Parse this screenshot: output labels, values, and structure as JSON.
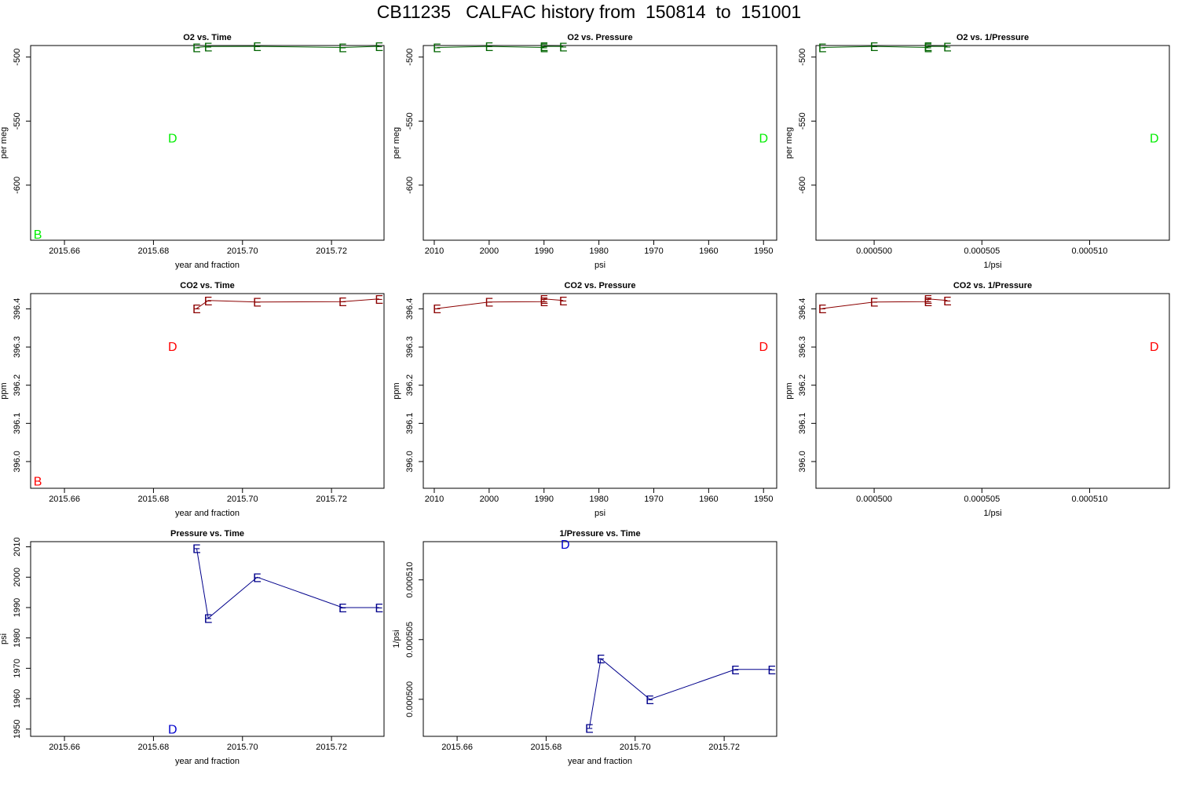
{
  "page": {
    "title": "CB11235   CALFAC history from  150814  to  151001"
  },
  "colors": {
    "o2_line": "#006400",
    "o2_last_point": "#00ee00",
    "co2_line": "#8b0000",
    "co2_last_point": "#ff0000",
    "pressure_line": "#00008b",
    "pressure_last_point": "#0000cd"
  },
  "chart_data": [
    {
      "type": "line",
      "title": "O2 vs. Time",
      "xlabel": "year and fraction",
      "ylabel": "per meg",
      "xlim": [
        2015.6524,
        2015.7318
      ],
      "ylim": [
        -643,
        -491
      ],
      "xticks": [
        2015.66,
        2015.68,
        2015.7,
        2015.72
      ],
      "xtick_labels": [
        "2015.66",
        "2015.68",
        "2015.70",
        "2015.72"
      ],
      "yticks": [
        -500,
        -550,
        -600
      ],
      "ytick_labels": [
        "-500",
        "-550",
        "-600"
      ],
      "series": [
        {
          "points": [
            [
              2015.6897,
              -492.5,
              "E"
            ],
            [
              2015.6923,
              -491.8,
              "E"
            ],
            [
              2015.7033,
              -491.7,
              "E"
            ],
            [
              2015.7225,
              -492.5,
              "E"
            ],
            [
              2015.7307,
              -491.6,
              "E"
            ]
          ],
          "line": true,
          "color": "#006400"
        },
        {
          "points": [
            [
              2015.654,
              -638,
              "B"
            ],
            [
              2015.6843,
              -563,
              "D"
            ]
          ],
          "line": false,
          "color": "#00ee00"
        }
      ]
    },
    {
      "type": "line",
      "title": "O2 vs. Pressure",
      "xlabel": "psi",
      "ylabel": "per meg",
      "xlim": [
        2012,
        1947.6
      ],
      "ylim": [
        -643,
        -491
      ],
      "xticks": [
        2010,
        2000,
        1990,
        1980,
        1970,
        1960,
        1950
      ],
      "xtick_labels": [
        "2010",
        "2000",
        "1990",
        "1980",
        "1970",
        "1960",
        "1950"
      ],
      "yticks": [
        -500,
        -550,
        -600
      ],
      "ytick_labels": [
        "-500",
        "-550",
        "-600"
      ],
      "series": [
        {
          "points": [
            [
              2009.5,
              -492.5,
              "E"
            ],
            [
              2000,
              -491.7,
              "E"
            ],
            [
              1990,
              -492.5,
              "E"
            ],
            [
              1990,
              -491.6,
              "E"
            ],
            [
              1986.5,
              -491.8,
              "E"
            ]
          ],
          "line": true,
          "color": "#006400"
        },
        {
          "points": [
            [
              1950,
              -563,
              "D"
            ]
          ],
          "line": false,
          "color": "#00ee00"
        }
      ]
    },
    {
      "type": "line",
      "title": "O2 vs. 1/Pressure",
      "xlabel": "1/psi",
      "ylabel": "per meg",
      "xlim": [
        0.0004973,
        0.0005137
      ],
      "ylim": [
        -643,
        -491
      ],
      "xticks": [
        0.0005,
        0.000505,
        0.00051
      ],
      "xtick_labels": [
        "0.000500",
        "0.000505",
        "0.000510"
      ],
      "yticks": [
        -500,
        -550,
        -600
      ],
      "ytick_labels": [
        "-500",
        "-550",
        "-600"
      ],
      "series": [
        {
          "points": [
            [
              0.0004976,
              -492.5,
              "E"
            ],
            [
              0.0005,
              -491.7,
              "E"
            ],
            [
              0.0005025,
              -492.5,
              "E"
            ],
            [
              0.0005025,
              -491.6,
              "E"
            ],
            [
              0.0005034,
              -491.8,
              "E"
            ]
          ],
          "line": true,
          "color": "#006400"
        },
        {
          "points": [
            [
              0.000513,
              -563,
              "D"
            ]
          ],
          "line": false,
          "color": "#00ee00"
        }
      ]
    },
    {
      "type": "line",
      "title": "CO2 vs. Time",
      "xlabel": "year and fraction",
      "ylabel": "ppm",
      "xlim": [
        2015.6524,
        2015.7318
      ],
      "ylim": [
        395.93,
        396.44
      ],
      "xticks": [
        2015.66,
        2015.68,
        2015.7,
        2015.72
      ],
      "xtick_labels": [
        "2015.66",
        "2015.68",
        "2015.70",
        "2015.72"
      ],
      "yticks": [
        396.0,
        396.1,
        396.2,
        396.3,
        396.4
      ],
      "ytick_labels": [
        "396.0",
        "396.1",
        "396.2",
        "396.3",
        "396.4"
      ],
      "series": [
        {
          "points": [
            [
              2015.6897,
              396.401,
              "E"
            ],
            [
              2015.6923,
              396.422,
              "E"
            ],
            [
              2015.7033,
              396.418,
              "E"
            ],
            [
              2015.7225,
              396.419,
              "E"
            ],
            [
              2015.7307,
              396.426,
              "E"
            ]
          ],
          "line": true,
          "color": "#8b0000"
        },
        {
          "points": [
            [
              2015.654,
              395.95,
              "B"
            ],
            [
              2015.6843,
              396.302,
              "D"
            ]
          ],
          "line": false,
          "color": "#ff0000"
        }
      ]
    },
    {
      "type": "line",
      "title": "CO2 vs. Pressure",
      "xlabel": "psi",
      "ylabel": "ppm",
      "xlim": [
        2012,
        1947.6
      ],
      "ylim": [
        395.93,
        396.44
      ],
      "xticks": [
        2010,
        2000,
        1990,
        1980,
        1970,
        1960,
        1950
      ],
      "xtick_labels": [
        "2010",
        "2000",
        "1990",
        "1980",
        "1970",
        "1960",
        "1950"
      ],
      "yticks": [
        396.0,
        396.1,
        396.2,
        396.3,
        396.4
      ],
      "ytick_labels": [
        "396.0",
        "396.1",
        "396.2",
        "396.3",
        "396.4"
      ],
      "series": [
        {
          "points": [
            [
              2009.5,
              396.401,
              "E"
            ],
            [
              2000,
              396.418,
              "E"
            ],
            [
              1990,
              396.419,
              "E"
            ],
            [
              1990,
              396.426,
              "E"
            ],
            [
              1986.5,
              396.422,
              "E"
            ]
          ],
          "line": true,
          "color": "#8b0000"
        },
        {
          "points": [
            [
              1950,
              396.302,
              "D"
            ]
          ],
          "line": false,
          "color": "#ff0000"
        }
      ]
    },
    {
      "type": "line",
      "title": "CO2 vs. 1/Pressure",
      "xlabel": "1/psi",
      "ylabel": "ppm",
      "xlim": [
        0.0004973,
        0.0005137
      ],
      "ylim": [
        395.93,
        396.44
      ],
      "xticks": [
        0.0005,
        0.000505,
        0.00051
      ],
      "xtick_labels": [
        "0.000500",
        "0.000505",
        "0.000510"
      ],
      "yticks": [
        396.0,
        396.1,
        396.2,
        396.3,
        396.4
      ],
      "ytick_labels": [
        "396.0",
        "396.1",
        "396.2",
        "396.3",
        "396.4"
      ],
      "series": [
        {
          "points": [
            [
              0.0004976,
              396.401,
              "E"
            ],
            [
              0.0005,
              396.418,
              "E"
            ],
            [
              0.0005025,
              396.419,
              "E"
            ],
            [
              0.0005025,
              396.426,
              "E"
            ],
            [
              0.0005034,
              396.422,
              "E"
            ]
          ],
          "line": true,
          "color": "#8b0000"
        },
        {
          "points": [
            [
              0.000513,
              396.302,
              "D"
            ]
          ],
          "line": false,
          "color": "#ff0000"
        }
      ]
    },
    {
      "type": "line",
      "title": "Pressure vs. Time",
      "xlabel": "year and fraction",
      "ylabel": "psi",
      "xlim": [
        2015.6524,
        2015.7318
      ],
      "ylim": [
        1947.6,
        2011.7
      ],
      "xticks": [
        2015.66,
        2015.68,
        2015.7,
        2015.72
      ],
      "xtick_labels": [
        "2015.66",
        "2015.68",
        "2015.70",
        "2015.72"
      ],
      "yticks": [
        1950,
        1960,
        1970,
        1980,
        1990,
        2000,
        2010
      ],
      "ytick_labels": [
        "1950",
        "1960",
        "1970",
        "1980",
        "1990",
        "2000",
        "2010"
      ],
      "series": [
        {
          "points": [
            [
              2015.6897,
              2009.5,
              "E"
            ],
            [
              2015.6923,
              1986.5,
              "E"
            ],
            [
              2015.7033,
              2000,
              "E"
            ],
            [
              2015.7225,
              1990,
              "E"
            ],
            [
              2015.7307,
              1990,
              "E"
            ]
          ],
          "line": true,
          "color": "#00008b"
        },
        {
          "points": [
            [
              2015.6843,
              1950,
              "D"
            ]
          ],
          "line": false,
          "color": "#0000cd"
        }
      ]
    },
    {
      "type": "line",
      "title": "1/Pressure vs. Time",
      "xlabel": "year and fraction",
      "ylabel": "1/psi",
      "xlim": [
        2015.6524,
        2015.7318
      ],
      "ylim": [
        0.0004969,
        0.0005132
      ],
      "xticks": [
        2015.66,
        2015.68,
        2015.7,
        2015.72
      ],
      "xtick_labels": [
        "2015.66",
        "2015.68",
        "2015.70",
        "2015.72"
      ],
      "yticks": [
        0.0005,
        0.000505,
        0.00051
      ],
      "ytick_labels": [
        "0.000500",
        "0.000505",
        "0.000510"
      ],
      "series": [
        {
          "points": [
            [
              2015.6897,
              0.0004976,
              "E"
            ],
            [
              2015.6923,
              0.0005034,
              "E"
            ],
            [
              2015.7033,
              0.0005,
              "E"
            ],
            [
              2015.7225,
              0.0005025,
              "E"
            ],
            [
              2015.7307,
              0.0005025,
              "E"
            ]
          ],
          "line": true,
          "color": "#00008b"
        },
        {
          "points": [
            [
              2015.6843,
              0.000513,
              "D"
            ]
          ],
          "line": false,
          "color": "#0000cd"
        }
      ]
    }
  ]
}
